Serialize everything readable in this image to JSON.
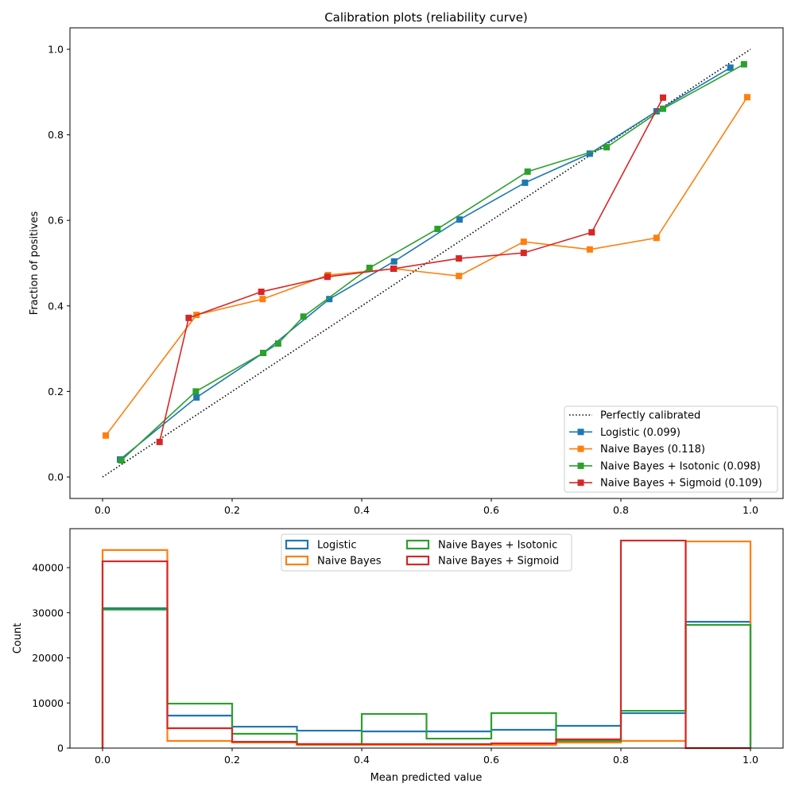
{
  "chart_data": [
    {
      "type": "line",
      "title": "Calibration plots  (reliability curve)",
      "xlabel": "",
      "ylabel": "Fraction of positives",
      "xlim": [
        -0.05,
        1.05
      ],
      "ylim": [
        -0.05,
        1.05
      ],
      "xticks": [
        "0.0",
        "0.2",
        "0.4",
        "0.6",
        "0.8",
        "1.0"
      ],
      "yticks": [
        "0.0",
        "0.2",
        "0.4",
        "0.6",
        "0.8",
        "1.0"
      ],
      "grid": false,
      "legend_position": "lower-right",
      "series": [
        {
          "name": "Perfectly calibrated",
          "color": "#000000",
          "style": "dotted",
          "x": [
            0,
            1
          ],
          "y": [
            0,
            1
          ]
        },
        {
          "name": "Logistic (0.099)",
          "color": "#1f77b4",
          "x": [
            0.027,
            0.145,
            0.248,
            0.35,
            0.45,
            0.551,
            0.652,
            0.752,
            0.855,
            0.969
          ],
          "y": [
            0.041,
            0.186,
            0.29,
            0.416,
            0.504,
            0.602,
            0.688,
            0.756,
            0.855,
            0.957
          ]
        },
        {
          "name": "Naive Bayes (0.118)",
          "color": "#ff7f0e",
          "x": [
            0.005,
            0.145,
            0.247,
            0.348,
            0.45,
            0.55,
            0.65,
            0.752,
            0.855,
            0.995
          ],
          "y": [
            0.097,
            0.379,
            0.416,
            0.472,
            0.487,
            0.47,
            0.55,
            0.532,
            0.559,
            0.888
          ]
        },
        {
          "name": "Naive Bayes + Isotonic (0.098)",
          "color": "#2ca02c",
          "x": [
            0.029,
            0.144,
            0.248,
            0.271,
            0.31,
            0.412,
            0.517,
            0.656,
            0.778,
            0.865,
            0.99
          ],
          "y": [
            0.039,
            0.2,
            0.29,
            0.312,
            0.375,
            0.489,
            0.58,
            0.714,
            0.771,
            0.861,
            0.965
          ]
        },
        {
          "name": "Naive Bayes + Sigmoid (0.109)",
          "color": "#d62728",
          "x": [
            0.088,
            0.133,
            0.245,
            0.347,
            0.449,
            0.55,
            0.65,
            0.755,
            0.865
          ],
          "y": [
            0.082,
            0.372,
            0.433,
            0.468,
            0.487,
            0.511,
            0.524,
            0.572,
            0.887
          ]
        }
      ]
    },
    {
      "type": "histogram",
      "xlabel": "Mean predicted value",
      "ylabel": "Count",
      "xlim": [
        -0.05,
        1.05
      ],
      "ylim": [
        0,
        48600
      ],
      "xticks": [
        "0.0",
        "0.2",
        "0.4",
        "0.6",
        "0.8",
        "1.0"
      ],
      "yticks": [
        "0",
        "10000",
        "20000",
        "30000",
        "40000"
      ],
      "bin_edges": [
        0,
        0.1,
        0.2,
        0.3,
        0.4,
        0.5,
        0.6,
        0.7,
        0.8,
        0.9,
        1.0
      ],
      "legend_position": "upper-center",
      "series": [
        {
          "name": "Logistic",
          "color": "#1f77b4",
          "values": [
            31000,
            7200,
            4750,
            3870,
            3700,
            3700,
            4050,
            4930,
            7740,
            28000
          ]
        },
        {
          "name": "Naive Bayes",
          "color": "#ff7f0e",
          "values": [
            43900,
            1580,
            1230,
            700,
            700,
            700,
            700,
            1230,
            1580,
            45800
          ]
        },
        {
          "name": "Naive Bayes + Isotonic",
          "color": "#2ca02c",
          "values": [
            30700,
            9860,
            3170,
            880,
            7570,
            2100,
            7750,
            1580,
            8270,
            27300
          ]
        },
        {
          "name": "Naive Bayes + Sigmoid",
          "color": "#d62728",
          "values": [
            41400,
            4400,
            1400,
            880,
            880,
            880,
            1050,
            1940,
            46000,
            0
          ]
        }
      ]
    }
  ]
}
